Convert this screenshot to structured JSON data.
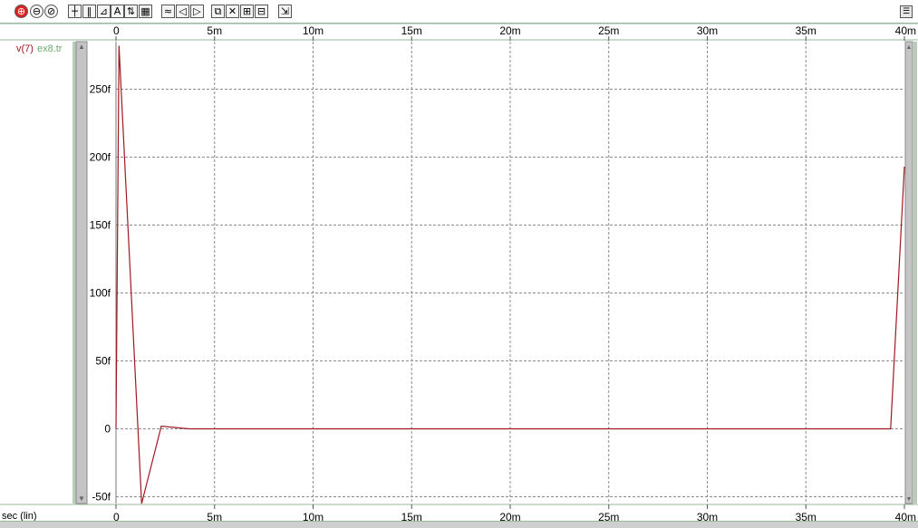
{
  "toolbar": {
    "buttons": [
      {
        "name": "zoom-in-icon",
        "glyph": "⊕"
      },
      {
        "name": "zoom-out-icon",
        "glyph": "⊖"
      },
      {
        "name": "zoom-fit-icon",
        "glyph": "⊘"
      },
      {
        "name": "crosshair-icon",
        "glyph": "┼"
      },
      {
        "name": "grid-vertical-icon",
        "glyph": "‖"
      },
      {
        "name": "marker-icon",
        "glyph": "⊿"
      },
      {
        "name": "text-annotate-icon",
        "glyph": "A"
      },
      {
        "name": "measure-icon",
        "glyph": "⇅"
      },
      {
        "name": "grid-toggle-icon",
        "glyph": "▦"
      },
      {
        "name": "waveform-icon",
        "glyph": "≈"
      },
      {
        "name": "pan-left-icon",
        "glyph": "◁"
      },
      {
        "name": "pan-right-icon",
        "glyph": "▷"
      },
      {
        "name": "copy-icon",
        "glyph": "⧉"
      },
      {
        "name": "delete-icon",
        "glyph": "✕"
      },
      {
        "name": "arrange-icon",
        "glyph": "⊞"
      },
      {
        "name": "stack-icon",
        "glyph": "⊟"
      },
      {
        "name": "export-icon",
        "glyph": "⇲"
      }
    ],
    "right_glyph": "☰"
  },
  "legend": {
    "signal": "v(7)",
    "file": "ex8.tr"
  },
  "footer": {
    "xscale_label": "sec (lin)"
  },
  "colors": {
    "trace": "#a01820",
    "grid": "#8c8c8c",
    "axis_bar": "#b8ccb8",
    "scroll_bar": "#c4c4c4",
    "frame": "#9ab99a"
  },
  "chart_data": {
    "type": "line",
    "xlabel": "sec (lin)",
    "ylabel": "",
    "xlim": [
      0,
      0.04
    ],
    "ylim": [
      -5.5e-14,
      2.85e-13
    ],
    "x_ticks": [
      {
        "value": 0,
        "label": "0"
      },
      {
        "value": 0.005,
        "label": "5m"
      },
      {
        "value": 0.01,
        "label": "10m"
      },
      {
        "value": 0.015,
        "label": "15m"
      },
      {
        "value": 0.02,
        "label": "20m"
      },
      {
        "value": 0.025,
        "label": "25m"
      },
      {
        "value": 0.03,
        "label": "30m"
      },
      {
        "value": 0.035,
        "label": "35m"
      },
      {
        "value": 0.04,
        "label": "40m"
      }
    ],
    "y_ticks": [
      {
        "value": -5e-14,
        "label": "-50f"
      },
      {
        "value": 0,
        "label": "0"
      },
      {
        "value": 5e-14,
        "label": "50f"
      },
      {
        "value": 1e-13,
        "label": "100f"
      },
      {
        "value": 1.5e-13,
        "label": "150f"
      },
      {
        "value": 2e-13,
        "label": "200f"
      },
      {
        "value": 2.5e-13,
        "label": "250f"
      }
    ],
    "grid": true,
    "series": [
      {
        "name": "v(7)",
        "x": [
          0,
          0.00015,
          0.0013,
          0.0023,
          0.0037,
          0.0393,
          0.04
        ],
        "y": [
          0,
          2.82e-13,
          -5.5e-14,
          2e-15,
          0,
          0,
          1.93e-13
        ]
      }
    ]
  }
}
